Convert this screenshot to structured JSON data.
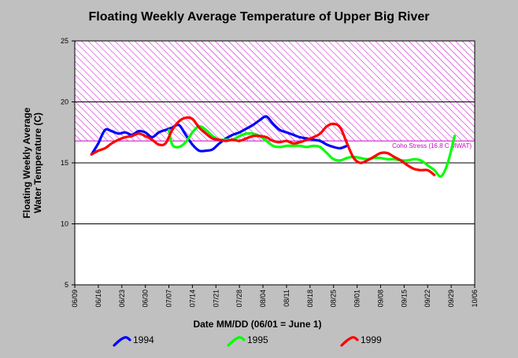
{
  "chart_data": {
    "type": "line",
    "title": "Floating Weekly Average Temperature of Upper Big River",
    "xlabel": "Date MM/DD (06/01 = June 1)",
    "ylabel": "Floating Weekly Average\nWater Temperature (C)",
    "x_tick_labels": [
      "06/09",
      "06/16",
      "06/23",
      "06/30",
      "07/07",
      "07/14",
      "07/21",
      "07/28",
      "08/04",
      "08/11",
      "08/18",
      "08/25",
      "09/01",
      "09/08",
      "09/15",
      "09/22",
      "09/29",
      "10/06"
    ],
    "x_range": [
      "06/09",
      "10/06"
    ],
    "ylim": [
      5,
      25
    ],
    "y_ticks": [
      5,
      10,
      15,
      20,
      25
    ],
    "grid": true,
    "threshold": {
      "value": 16.8,
      "label": "Coho Stress (16.8 C MWAT)",
      "color": "#cc00cc"
    },
    "legend_position": "bottom",
    "series": [
      {
        "name": "1994",
        "color": "#0000ff",
        "points": [
          [
            "06/14",
            15.7
          ],
          [
            "06/16",
            16.6
          ],
          [
            "06/18",
            17.7
          ],
          [
            "06/20",
            17.6
          ],
          [
            "06/22",
            17.4
          ],
          [
            "06/24",
            17.5
          ],
          [
            "06/26",
            17.3
          ],
          [
            "06/28",
            17.6
          ],
          [
            "06/30",
            17.5
          ],
          [
            "07/02",
            17.1
          ],
          [
            "07/04",
            17.5
          ],
          [
            "07/06",
            17.7
          ],
          [
            "07/08",
            17.9
          ],
          [
            "07/10",
            18.1
          ],
          [
            "07/12",
            17.3
          ],
          [
            "07/14",
            16.5
          ],
          [
            "07/16",
            16.0
          ],
          [
            "07/18",
            16.0
          ],
          [
            "07/20",
            16.1
          ],
          [
            "07/22",
            16.6
          ],
          [
            "07/24",
            17.0
          ],
          [
            "07/26",
            17.3
          ],
          [
            "07/28",
            17.5
          ],
          [
            "07/30",
            17.8
          ],
          [
            "08/01",
            18.1
          ],
          [
            "08/03",
            18.5
          ],
          [
            "08/05",
            18.8
          ],
          [
            "08/07",
            18.2
          ],
          [
            "08/09",
            17.7
          ],
          [
            "08/11",
            17.5
          ],
          [
            "08/13",
            17.3
          ],
          [
            "08/15",
            17.1
          ],
          [
            "08/17",
            17.0
          ],
          [
            "08/19",
            16.9
          ],
          [
            "08/21",
            16.8
          ],
          [
            "08/23",
            16.5
          ],
          [
            "08/25",
            16.3
          ],
          [
            "08/27",
            16.2
          ],
          [
            "08/29",
            16.4
          ]
        ]
      },
      {
        "name": "1995",
        "color": "#00ff00",
        "points": [
          [
            "07/07",
            17.7
          ],
          [
            "07/08",
            16.5
          ],
          [
            "07/10",
            16.3
          ],
          [
            "07/12",
            16.7
          ],
          [
            "07/14",
            17.5
          ],
          [
            "07/16",
            18.0
          ],
          [
            "07/18",
            17.7
          ],
          [
            "07/20",
            17.2
          ],
          [
            "07/22",
            16.9
          ],
          [
            "07/24",
            16.9
          ],
          [
            "07/26",
            16.9
          ],
          [
            "07/28",
            17.2
          ],
          [
            "07/30",
            17.4
          ],
          [
            "08/01",
            17.4
          ],
          [
            "08/03",
            17.2
          ],
          [
            "08/05",
            16.8
          ],
          [
            "08/07",
            16.4
          ],
          [
            "08/09",
            16.3
          ],
          [
            "08/11",
            16.4
          ],
          [
            "08/13",
            16.4
          ],
          [
            "08/15",
            16.4
          ],
          [
            "08/17",
            16.3
          ],
          [
            "08/19",
            16.4
          ],
          [
            "08/21",
            16.3
          ],
          [
            "08/23",
            15.8
          ],
          [
            "08/25",
            15.3
          ],
          [
            "08/27",
            15.2
          ],
          [
            "08/29",
            15.4
          ],
          [
            "08/31",
            15.5
          ],
          [
            "09/02",
            15.4
          ],
          [
            "09/04",
            15.3
          ],
          [
            "09/06",
            15.4
          ],
          [
            "09/08",
            15.4
          ],
          [
            "09/10",
            15.3
          ],
          [
            "09/12",
            15.3
          ],
          [
            "09/14",
            15.2
          ],
          [
            "09/16",
            15.2
          ],
          [
            "09/18",
            15.3
          ],
          [
            "09/20",
            15.2
          ],
          [
            "09/22",
            14.8
          ],
          [
            "09/24",
            14.4
          ],
          [
            "09/26",
            13.9
          ],
          [
            "09/28",
            15.0
          ],
          [
            "09/30",
            17.2
          ]
        ]
      },
      {
        "name": "1999",
        "color": "#ff0000",
        "points": [
          [
            "06/14",
            15.7
          ],
          [
            "06/16",
            16.0
          ],
          [
            "06/18",
            16.2
          ],
          [
            "06/20",
            16.6
          ],
          [
            "06/22",
            16.9
          ],
          [
            "06/24",
            17.1
          ],
          [
            "06/26",
            17.2
          ],
          [
            "06/28",
            17.4
          ],
          [
            "06/30",
            17.2
          ],
          [
            "07/02",
            16.9
          ],
          [
            "07/04",
            16.5
          ],
          [
            "07/06",
            16.6
          ],
          [
            "07/08",
            17.7
          ],
          [
            "07/10",
            18.4
          ],
          [
            "07/12",
            18.7
          ],
          [
            "07/14",
            18.6
          ],
          [
            "07/16",
            17.9
          ],
          [
            "07/18",
            17.4
          ],
          [
            "07/20",
            17.0
          ],
          [
            "07/22",
            16.9
          ],
          [
            "07/24",
            16.8
          ],
          [
            "07/26",
            16.9
          ],
          [
            "07/28",
            16.8
          ],
          [
            "07/30",
            17.0
          ],
          [
            "08/01",
            17.2
          ],
          [
            "08/03",
            17.2
          ],
          [
            "08/05",
            17.1
          ],
          [
            "08/07",
            16.8
          ],
          [
            "08/09",
            16.7
          ],
          [
            "08/11",
            16.8
          ],
          [
            "08/13",
            16.6
          ],
          [
            "08/15",
            16.7
          ],
          [
            "08/17",
            16.9
          ],
          [
            "08/19",
            17.1
          ],
          [
            "08/21",
            17.4
          ],
          [
            "08/23",
            18.0
          ],
          [
            "08/25",
            18.2
          ],
          [
            "08/27",
            17.9
          ],
          [
            "08/29",
            16.6
          ],
          [
            "08/31",
            15.4
          ],
          [
            "09/02",
            15.0
          ],
          [
            "09/04",
            15.2
          ],
          [
            "09/06",
            15.5
          ],
          [
            "09/08",
            15.8
          ],
          [
            "09/10",
            15.8
          ],
          [
            "09/12",
            15.5
          ],
          [
            "09/14",
            15.2
          ],
          [
            "09/16",
            14.8
          ],
          [
            "09/18",
            14.5
          ],
          [
            "09/20",
            14.4
          ],
          [
            "09/22",
            14.4
          ],
          [
            "09/24",
            14.0
          ]
        ]
      }
    ]
  }
}
